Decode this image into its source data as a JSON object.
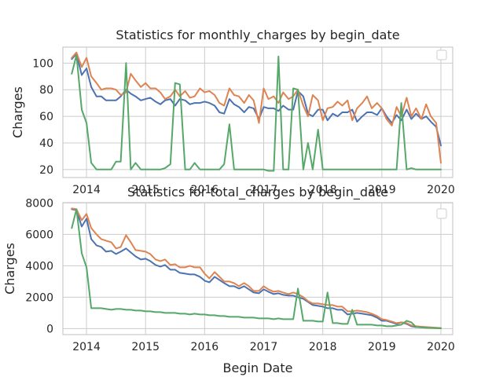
{
  "colors": {
    "blue": "#4c72b0",
    "orange": "#dd8452",
    "green": "#55a868",
    "grid": "#cccccc",
    "text": "#262626"
  },
  "chart_data": [
    {
      "type": "line",
      "title": "Statistics for monthly_charges by begin_date",
      "xlabel": "",
      "ylabel": "Charges",
      "xlim": [
        2013.6,
        2020.2
      ],
      "ylim": [
        14,
        112
      ],
      "yticks": [
        20,
        40,
        60,
        80,
        100
      ],
      "xticks": [
        {
          "value": 2014,
          "label": "2014"
        },
        {
          "value": 2015,
          "label": "2015"
        },
        {
          "value": 2016,
          "label": "2016"
        },
        {
          "value": 2017,
          "label": "2017"
        },
        {
          "value": 2018,
          "label": "2018"
        },
        {
          "value": 2019,
          "label": "2019"
        },
        {
          "value": 2020,
          "label": "2020"
        }
      ],
      "grid": true,
      "legend": "top-right (empty)",
      "x": [
        2013.75,
        2013.83,
        2013.92,
        2014.0,
        2014.08,
        2014.17,
        2014.25,
        2014.33,
        2014.42,
        2014.5,
        2014.58,
        2014.67,
        2014.75,
        2014.83,
        2014.92,
        2015.0,
        2015.08,
        2015.17,
        2015.25,
        2015.33,
        2015.42,
        2015.5,
        2015.58,
        2015.67,
        2015.75,
        2015.83,
        2015.92,
        2016.0,
        2016.08,
        2016.17,
        2016.25,
        2016.33,
        2016.42,
        2016.5,
        2016.58,
        2016.67,
        2016.75,
        2016.83,
        2016.92,
        2017.0,
        2017.08,
        2017.17,
        2017.25,
        2017.33,
        2017.42,
        2017.5,
        2017.58,
        2017.67,
        2017.75,
        2017.83,
        2017.92,
        2018.0,
        2018.08,
        2018.17,
        2018.25,
        2018.33,
        2018.42,
        2018.5,
        2018.58,
        2018.67,
        2018.75,
        2018.83,
        2018.92,
        2019.0,
        2019.08,
        2019.17,
        2019.25,
        2019.33,
        2019.42,
        2019.5,
        2019.58,
        2019.67,
        2019.75,
        2019.83,
        2019.92,
        2020.0
      ],
      "series": [
        {
          "color": "blue",
          "values": [
            103,
            107,
            91,
            96,
            82,
            75,
            75,
            72,
            72,
            72,
            75,
            80,
            77,
            75,
            72,
            73,
            74,
            71,
            69,
            72,
            73,
            68,
            73,
            72,
            69,
            70,
            70,
            71,
            70,
            68,
            63,
            62,
            73,
            69,
            67,
            63,
            67,
            66,
            58,
            67,
            66,
            66,
            64,
            68,
            65,
            65,
            79,
            75,
            62,
            60,
            65,
            65,
            57,
            62,
            60,
            63,
            63,
            65,
            56,
            60,
            63,
            63,
            61,
            66,
            60,
            55,
            61,
            57,
            65,
            58,
            62,
            58,
            60,
            56,
            52,
            38
          ]
        },
        {
          "color": "orange",
          "values": [
            104,
            108,
            97,
            104,
            90,
            85,
            80,
            81,
            81,
            80,
            76,
            78,
            92,
            87,
            82,
            85,
            81,
            81,
            78,
            73,
            75,
            80,
            75,
            79,
            74,
            75,
            81,
            78,
            79,
            76,
            70,
            68,
            81,
            76,
            75,
            70,
            76,
            72,
            55,
            81,
            73,
            75,
            70,
            78,
            73,
            75,
            80,
            68,
            60,
            76,
            72,
            57,
            66,
            67,
            71,
            68,
            72,
            57,
            66,
            70,
            75,
            66,
            70,
            66,
            58,
            53,
            67,
            60,
            74,
            60,
            66,
            58,
            69,
            60,
            55,
            25
          ]
        },
        {
          "color": "green",
          "values": [
            92,
            106,
            65,
            55,
            25,
            20,
            20,
            20,
            20,
            26,
            26,
            100,
            20,
            25,
            20,
            20,
            20,
            20,
            20,
            21,
            24,
            85,
            84,
            20,
            20,
            25,
            20,
            20,
            20,
            20,
            20,
            24,
            54,
            20,
            20,
            20,
            20,
            20,
            20,
            20,
            19,
            19,
            105,
            20,
            20,
            81,
            80,
            20,
            40,
            20,
            50,
            20,
            20,
            20,
            20,
            20,
            20,
            20,
            20,
            20,
            20,
            20,
            20,
            20,
            20,
            20,
            20,
            70,
            20,
            21,
            20,
            20,
            20,
            20,
            20,
            20
          ]
        }
      ]
    },
    {
      "type": "line",
      "title": "Statistics for total_charges by begin_date",
      "xlabel": "Begin Date",
      "ylabel": "Charges",
      "xlim": [
        2013.6,
        2020.2
      ],
      "ylim": [
        -380,
        8020
      ],
      "yticks": [
        0,
        2000,
        4000,
        6000,
        8000
      ],
      "xticks": [
        {
          "value": 2014,
          "label": "2014"
        },
        {
          "value": 2015,
          "label": "2015"
        },
        {
          "value": 2016,
          "label": "2016"
        },
        {
          "value": 2017,
          "label": "2017"
        },
        {
          "value": 2018,
          "label": "2018"
        },
        {
          "value": 2019,
          "label": "2019"
        },
        {
          "value": 2020,
          "label": "2020"
        }
      ],
      "grid": true,
      "legend": "top-right (empty)",
      "x": [
        2013.75,
        2013.83,
        2013.92,
        2014.0,
        2014.08,
        2014.17,
        2014.25,
        2014.33,
        2014.42,
        2014.5,
        2014.58,
        2014.67,
        2014.75,
        2014.83,
        2014.92,
        2015.0,
        2015.08,
        2015.17,
        2015.25,
        2015.33,
        2015.42,
        2015.5,
        2015.58,
        2015.67,
        2015.75,
        2015.83,
        2015.92,
        2016.0,
        2016.08,
        2016.17,
        2016.25,
        2016.33,
        2016.42,
        2016.5,
        2016.58,
        2016.67,
        2016.75,
        2016.83,
        2016.92,
        2017.0,
        2017.08,
        2017.17,
        2017.25,
        2017.33,
        2017.42,
        2017.5,
        2017.58,
        2017.67,
        2017.75,
        2017.83,
        2017.92,
        2018.0,
        2018.08,
        2018.17,
        2018.25,
        2018.33,
        2018.42,
        2018.5,
        2018.58,
        2018.67,
        2018.75,
        2018.83,
        2018.92,
        2019.0,
        2019.08,
        2019.17,
        2019.25,
        2019.33,
        2019.42,
        2019.5,
        2019.58,
        2019.67,
        2019.75,
        2019.83,
        2019.92,
        2020.0
      ],
      "series": [
        {
          "color": "blue",
          "values": [
            7600,
            7550,
            6500,
            7000,
            5700,
            5300,
            5200,
            4900,
            4950,
            4750,
            4900,
            5100,
            4850,
            4600,
            4400,
            4450,
            4300,
            4050,
            3950,
            4050,
            3750,
            3750,
            3550,
            3500,
            3450,
            3450,
            3300,
            3050,
            2950,
            3300,
            3100,
            2900,
            2700,
            2700,
            2550,
            2700,
            2500,
            2300,
            2250,
            2500,
            2350,
            2200,
            2250,
            2150,
            2100,
            2100,
            2000,
            1900,
            1700,
            1500,
            1450,
            1400,
            1300,
            1300,
            1200,
            1200,
            900,
            950,
            1000,
            950,
            900,
            850,
            700,
            500,
            500,
            400,
            300,
            400,
            300,
            150,
            100,
            80,
            60,
            50,
            30,
            20
          ]
        },
        {
          "color": "orange",
          "values": [
            7650,
            7600,
            6900,
            7300,
            6400,
            6000,
            5700,
            5600,
            5500,
            5100,
            5200,
            5950,
            5500,
            5000,
            4950,
            4900,
            4750,
            4400,
            4300,
            4400,
            4050,
            4100,
            3900,
            3900,
            4000,
            3900,
            3900,
            3500,
            3200,
            3600,
            3300,
            3000,
            3000,
            2900,
            2700,
            2900,
            2700,
            2400,
            2400,
            2700,
            2500,
            2350,
            2400,
            2300,
            2200,
            2300,
            2200,
            2000,
            1750,
            1600,
            1600,
            1550,
            1500,
            1500,
            1400,
            1400,
            1100,
            1100,
            1150,
            1100,
            1050,
            950,
            800,
            600,
            550,
            450,
            350,
            400,
            350,
            200,
            150,
            120,
            100,
            80,
            60,
            40
          ]
        },
        {
          "color": "green",
          "values": [
            6400,
            7600,
            4800,
            3900,
            1300,
            1300,
            1300,
            1250,
            1200,
            1250,
            1250,
            1200,
            1200,
            1150,
            1150,
            1100,
            1100,
            1050,
            1050,
            1000,
            1000,
            1000,
            950,
            950,
            900,
            950,
            900,
            900,
            850,
            850,
            800,
            800,
            750,
            750,
            750,
            700,
            700,
            700,
            650,
            650,
            650,
            600,
            650,
            600,
            600,
            600,
            2550,
            500,
            500,
            500,
            450,
            450,
            2300,
            350,
            350,
            300,
            300,
            1200,
            250,
            250,
            250,
            250,
            200,
            200,
            150,
            150,
            200,
            250,
            500,
            400,
            100,
            80,
            60,
            40,
            30,
            20
          ]
        }
      ]
    }
  ]
}
